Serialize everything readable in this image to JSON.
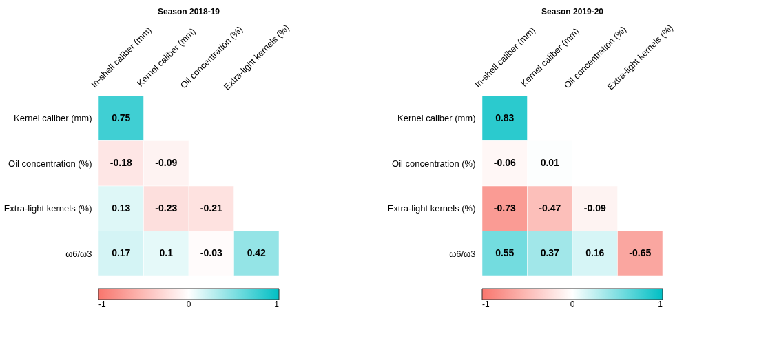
{
  "chart_data": [
    {
      "type": "heatmap",
      "title": "Season 2018-19",
      "categories": [
        "In-shell caliber (mm)",
        "Kernel caliber (mm)",
        "Oil concentration (%)",
        "Extra-light kernels (%)"
      ],
      "y_categories": [
        "Kernel caliber (mm)",
        "Oil concentration (%)",
        "Extra-light kernels (%)",
        "ω6/ω3"
      ],
      "cells": [
        [
          0.75,
          null,
          null,
          null
        ],
        [
          -0.18,
          -0.09,
          null,
          null
        ],
        [
          0.13,
          -0.23,
          -0.21,
          null
        ],
        [
          0.17,
          0.1,
          -0.03,
          0.42
        ]
      ],
      "clim": [
        -1,
        1
      ],
      "cticks": [
        -1,
        0,
        1
      ],
      "data_labels": true
    },
    {
      "type": "heatmap",
      "title": "Season 2019-20",
      "categories": [
        "In-shell caliber (mm)",
        "Kernel caliber (mm)",
        "Oil concentration (%)",
        "Extra-light kernels (%)"
      ],
      "y_categories": [
        "Kernel caliber (mm)",
        "Oil concentration (%)",
        "Extra-light kernels (%)",
        "ω6/ω3"
      ],
      "cells": [
        [
          0.83,
          null,
          null,
          null
        ],
        [
          -0.06,
          0.01,
          null,
          null
        ],
        [
          -0.73,
          -0.47,
          -0.09,
          null
        ],
        [
          0.55,
          0.37,
          0.16,
          -0.65
        ]
      ],
      "clim": [
        -1,
        1
      ],
      "cticks": [
        -1,
        0,
        1
      ],
      "data_labels": true
    }
  ]
}
